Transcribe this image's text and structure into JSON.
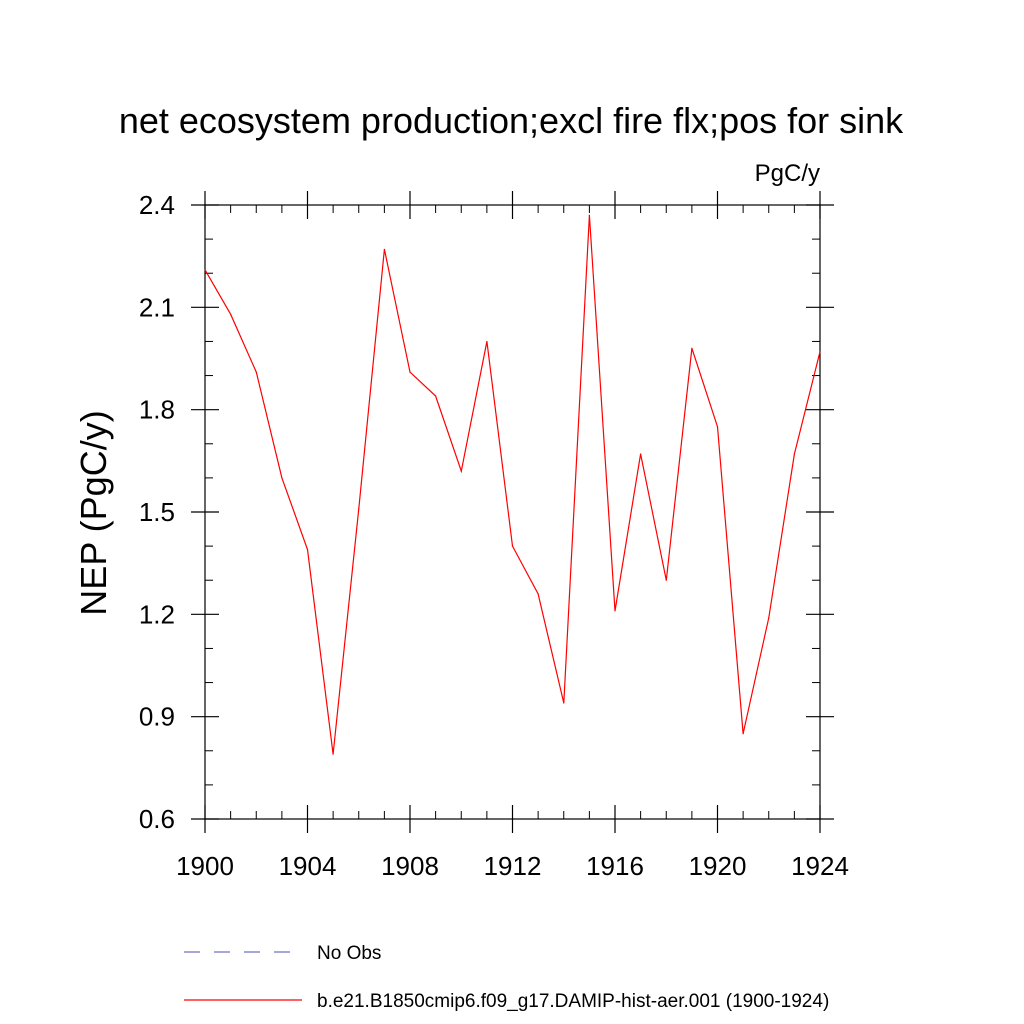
{
  "chart_data": {
    "type": "line",
    "title": "net ecosystem production;excl fire flx;pos for sink",
    "units_label": "PgC/y",
    "xlabel": "",
    "ylabel": "NEP  (PgC/y)",
    "xlim": [
      1900,
      1924
    ],
    "ylim": [
      0.6,
      2.4
    ],
    "x_ticks": [
      1900,
      1904,
      1908,
      1912,
      1916,
      1920,
      1924
    ],
    "y_ticks": [
      0.6,
      0.9,
      1.2,
      1.5,
      1.8,
      2.1,
      2.4
    ],
    "y_tick_labels": [
      "0.6",
      "0.9",
      "1.2",
      "1.5",
      "1.8",
      "2.1",
      "2.4"
    ],
    "grid": false,
    "legend_position": "bottom",
    "series": [
      {
        "name": "No Obs",
        "color": "#7070c0",
        "style": "dashed",
        "x": [],
        "y": []
      },
      {
        "name": "b.e21.B1850cmip6.f09_g17.DAMIP-hist-aer.001 (1900-1924)",
        "color": "#ff0000",
        "style": "solid",
        "x": [
          1900,
          1901,
          1902,
          1903,
          1904,
          1905,
          1906,
          1907,
          1908,
          1909,
          1910,
          1911,
          1912,
          1913,
          1914,
          1915,
          1916,
          1917,
          1918,
          1919,
          1920,
          1921,
          1922,
          1923,
          1924
        ],
        "y": [
          2.21,
          2.08,
          1.91,
          1.6,
          1.39,
          0.79,
          1.51,
          2.27,
          1.91,
          1.84,
          1.62,
          2.0,
          1.4,
          1.26,
          0.94,
          2.37,
          1.21,
          1.67,
          1.3,
          1.98,
          1.75,
          0.85,
          1.19,
          1.67,
          1.97
        ]
      }
    ]
  }
}
